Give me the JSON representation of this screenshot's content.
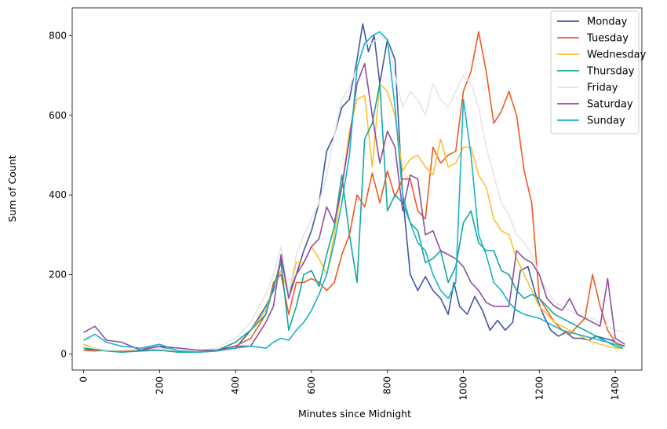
{
  "chart_data": {
    "type": "line",
    "xlabel": "Minutes since Midnight",
    "ylabel": "Sum of Count",
    "xlim": [
      -30,
      1470
    ],
    "ylim": [
      -40,
      870
    ],
    "xticks": [
      0,
      200,
      400,
      600,
      800,
      1000,
      1200,
      1400
    ],
    "yticks": [
      0,
      200,
      400,
      600,
      800
    ],
    "x_tick_rotation": 90,
    "legend_location": "upper right",
    "grid": false,
    "series": [
      {
        "name": "Monday",
        "color": "#3f57a6",
        "x": [
          0,
          30,
          60,
          100,
          150,
          200,
          250,
          300,
          350,
          400,
          440,
          480,
          500,
          520,
          540,
          560,
          580,
          600,
          620,
          640,
          660,
          680,
          700,
          720,
          735,
          750,
          765,
          780,
          800,
          820,
          840,
          860,
          880,
          900,
          920,
          940,
          960,
          975,
          990,
          1010,
          1030,
          1050,
          1070,
          1090,
          1110,
          1130,
          1150,
          1170,
          1190,
          1210,
          1230,
          1250,
          1270,
          1290,
          1310,
          1330,
          1350,
          1370,
          1390,
          1410,
          1425
        ],
        "y": [
          10,
          12,
          10,
          8,
          12,
          20,
          5,
          5,
          8,
          15,
          60,
          120,
          160,
          240,
          150,
          200,
          260,
          310,
          380,
          510,
          550,
          620,
          640,
          740,
          830,
          760,
          800,
          680,
          790,
          740,
          400,
          200,
          160,
          195,
          160,
          140,
          100,
          180,
          120,
          100,
          145,
          110,
          60,
          85,
          60,
          80,
          210,
          220,
          150,
          100,
          60,
          45,
          55,
          40,
          40,
          35,
          45,
          40,
          35,
          25,
          20
        ]
      },
      {
        "name": "Tuesday",
        "color": "#f05a22",
        "x": [
          0,
          30,
          60,
          100,
          150,
          200,
          250,
          300,
          350,
          400,
          440,
          480,
          500,
          520,
          540,
          560,
          580,
          600,
          620,
          640,
          660,
          680,
          700,
          720,
          740,
          760,
          780,
          800,
          820,
          840,
          860,
          880,
          900,
          920,
          940,
          960,
          980,
          1000,
          1020,
          1040,
          1060,
          1080,
          1100,
          1120,
          1140,
          1160,
          1180,
          1200,
          1220,
          1240,
          1260,
          1280,
          1300,
          1320,
          1340,
          1360,
          1380,
          1400,
          1420
        ],
        "y": [
          10,
          8,
          10,
          8,
          10,
          15,
          8,
          5,
          10,
          20,
          40,
          100,
          180,
          200,
          100,
          180,
          180,
          190,
          180,
          160,
          180,
          250,
          300,
          400,
          370,
          455,
          380,
          460,
          395,
          440,
          440,
          360,
          340,
          520,
          480,
          500,
          510,
          660,
          710,
          810,
          710,
          580,
          610,
          660,
          600,
          460,
          380,
          140,
          110,
          80,
          60,
          50,
          70,
          90,
          200,
          120,
          60,
          30,
          20
        ]
      },
      {
        "name": "Wednesday",
        "color": "#fbc12f",
        "x": [
          0,
          30,
          60,
          100,
          150,
          200,
          250,
          300,
          350,
          400,
          440,
          480,
          500,
          520,
          540,
          560,
          580,
          600,
          620,
          640,
          660,
          680,
          700,
          720,
          740,
          760,
          780,
          800,
          820,
          840,
          860,
          880,
          900,
          920,
          940,
          960,
          980,
          1000,
          1020,
          1040,
          1060,
          1080,
          1100,
          1120,
          1140,
          1160,
          1180,
          1200,
          1220,
          1240,
          1260,
          1280,
          1300,
          1320,
          1340,
          1360,
          1380,
          1400,
          1420
        ],
        "y": [
          25,
          15,
          10,
          5,
          8,
          10,
          5,
          5,
          10,
          30,
          60,
          110,
          170,
          210,
          150,
          230,
          230,
          270,
          240,
          200,
          300,
          420,
          560,
          640,
          650,
          470,
          680,
          660,
          600,
          460,
          490,
          500,
          470,
          450,
          540,
          470,
          480,
          520,
          520,
          450,
          420,
          340,
          310,
          300,
          240,
          200,
          160,
          120,
          100,
          80,
          70,
          60,
          50,
          40,
          30,
          25,
          20,
          15,
          15
        ]
      },
      {
        "name": "Thursday",
        "color": "#11a8a1",
        "x": [
          0,
          30,
          60,
          100,
          150,
          200,
          250,
          300,
          350,
          400,
          440,
          480,
          500,
          520,
          540,
          560,
          580,
          600,
          620,
          640,
          660,
          680,
          700,
          720,
          740,
          760,
          780,
          800,
          820,
          840,
          860,
          880,
          900,
          920,
          940,
          960,
          980,
          1000,
          1020,
          1040,
          1060,
          1080,
          1100,
          1120,
          1140,
          1160,
          1180,
          1200,
          1220,
          1240,
          1260,
          1280,
          1300,
          1320,
          1340,
          1360,
          1380,
          1400,
          1420
        ],
        "y": [
          15,
          12,
          8,
          5,
          8,
          10,
          5,
          5,
          8,
          30,
          60,
          100,
          170,
          230,
          60,
          120,
          200,
          210,
          170,
          250,
          320,
          450,
          300,
          180,
          540,
          580,
          680,
          360,
          400,
          380,
          330,
          310,
          230,
          240,
          260,
          180,
          220,
          330,
          360,
          280,
          260,
          260,
          210,
          200,
          160,
          140,
          150,
          140,
          120,
          100,
          90,
          80,
          70,
          60,
          50,
          40,
          30,
          20,
          15
        ]
      },
      {
        "name": "Friday",
        "color": "#e6e6e6",
        "x": [
          0,
          30,
          60,
          100,
          150,
          200,
          250,
          300,
          350,
          400,
          440,
          480,
          500,
          520,
          540,
          560,
          580,
          600,
          620,
          640,
          660,
          680,
          700,
          720,
          740,
          760,
          780,
          800,
          820,
          840,
          860,
          880,
          900,
          920,
          940,
          960,
          980,
          1000,
          1020,
          1040,
          1060,
          1080,
          1100,
          1120,
          1140,
          1160,
          1180,
          1200,
          1220,
          1240,
          1260,
          1280,
          1300,
          1320,
          1340,
          1360,
          1380,
          1400,
          1425
        ],
        "y": [
          20,
          15,
          10,
          10,
          12,
          15,
          8,
          8,
          15,
          40,
          80,
          150,
          200,
          270,
          150,
          250,
          300,
          340,
          380,
          450,
          550,
          640,
          670,
          720,
          780,
          780,
          800,
          790,
          700,
          620,
          660,
          640,
          600,
          680,
          640,
          620,
          660,
          700,
          680,
          620,
          520,
          450,
          380,
          350,
          300,
          280,
          250,
          200,
          160,
          130,
          120,
          110,
          100,
          90,
          90,
          80,
          70,
          60,
          55
        ]
      },
      {
        "name": "Saturday",
        "color": "#8e4ea0",
        "x": [
          0,
          30,
          60,
          100,
          150,
          200,
          250,
          300,
          350,
          400,
          440,
          480,
          500,
          520,
          540,
          560,
          580,
          600,
          620,
          640,
          660,
          680,
          700,
          720,
          740,
          760,
          780,
          800,
          820,
          840,
          860,
          880,
          900,
          920,
          940,
          960,
          980,
          1000,
          1020,
          1040,
          1060,
          1080,
          1100,
          1120,
          1140,
          1160,
          1180,
          1200,
          1220,
          1240,
          1260,
          1280,
          1300,
          1320,
          1340,
          1360,
          1380,
          1400,
          1425
        ],
        "y": [
          55,
          70,
          35,
          30,
          10,
          20,
          15,
          10,
          10,
          20,
          20,
          80,
          120,
          250,
          140,
          200,
          230,
          270,
          290,
          370,
          330,
          420,
          540,
          680,
          730,
          600,
          480,
          560,
          520,
          360,
          450,
          440,
          300,
          310,
          260,
          250,
          240,
          220,
          180,
          160,
          130,
          120,
          120,
          120,
          260,
          240,
          230,
          200,
          140,
          120,
          110,
          140,
          100,
          90,
          80,
          70,
          190,
          40,
          25
        ]
      },
      {
        "name": "Sunday",
        "color": "#17b1cc",
        "x": [
          0,
          30,
          60,
          100,
          150,
          200,
          250,
          300,
          350,
          400,
          440,
          480,
          500,
          520,
          540,
          560,
          580,
          600,
          620,
          640,
          660,
          680,
          700,
          720,
          740,
          760,
          780,
          800,
          820,
          840,
          860,
          880,
          900,
          920,
          940,
          960,
          980,
          1000,
          1020,
          1040,
          1060,
          1080,
          1100,
          1120,
          1140,
          1160,
          1180,
          1200,
          1220,
          1240,
          1260,
          1280,
          1300,
          1320,
          1340,
          1360,
          1380,
          1400,
          1420
        ],
        "y": [
          35,
          50,
          30,
          20,
          15,
          25,
          8,
          5,
          8,
          15,
          20,
          15,
          30,
          40,
          35,
          60,
          80,
          110,
          150,
          200,
          280,
          380,
          500,
          720,
          780,
          800,
          810,
          790,
          620,
          400,
          330,
          280,
          260,
          200,
          160,
          140,
          180,
          640,
          500,
          300,
          250,
          180,
          160,
          130,
          110,
          100,
          95,
          90,
          80,
          70,
          60,
          55,
          50,
          45,
          40,
          35,
          30,
          25,
          20
        ]
      }
    ]
  }
}
